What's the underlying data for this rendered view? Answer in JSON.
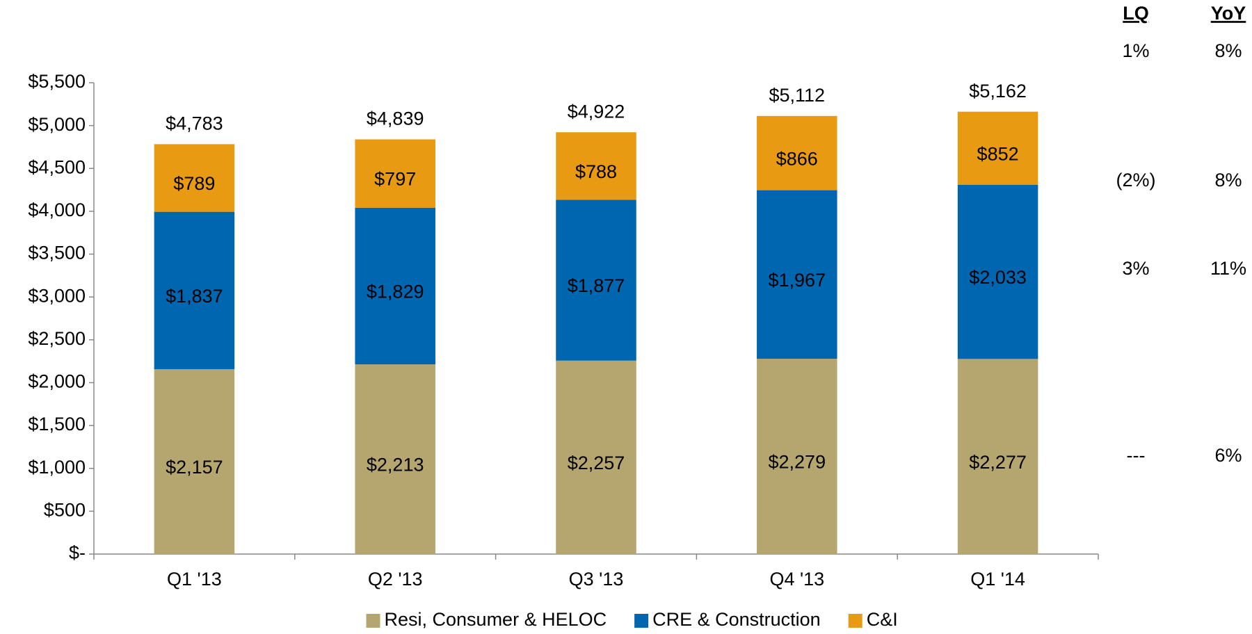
{
  "chart_data": {
    "type": "stacked_bar",
    "categories": [
      "Q1 '13",
      "Q2 '13",
      "Q3 '13",
      "Q4 '13",
      "Q1 '14"
    ],
    "series": [
      {
        "name": "Resi, Consumer & HELOC",
        "color": "#b5a56f",
        "values": [
          2157,
          2213,
          2257,
          2279,
          2277
        ],
        "value_labels": [
          "$2,157",
          "$2,213",
          "$2,257",
          "$2,279",
          "$2,277"
        ]
      },
      {
        "name": "CRE & Construction",
        "color": "#0066b0",
        "values": [
          1837,
          1829,
          1877,
          1967,
          2033
        ],
        "value_labels": [
          "$1,837",
          "$1,829",
          "$1,877",
          "$1,967",
          "$2,033"
        ]
      },
      {
        "name": "C&I",
        "color": "#e89b12",
        "values": [
          789,
          797,
          788,
          866,
          852
        ],
        "value_labels": [
          "$789",
          "$797",
          "$788",
          "$866",
          "$852"
        ]
      }
    ],
    "totals": [
      4783,
      4839,
      4922,
      5112,
      5162
    ],
    "total_labels": [
      "$4,783",
      "$4,839",
      "$4,922",
      "$5,112",
      "$5,162"
    ],
    "ylim": [
      0,
      5500
    ],
    "yticks": [
      {
        "value": 0,
        "label": "$-"
      },
      {
        "value": 500,
        "label": "$500"
      },
      {
        "value": 1000,
        "label": "$1,000"
      },
      {
        "value": 1500,
        "label": "$1,500"
      },
      {
        "value": 2000,
        "label": "$2,000"
      },
      {
        "value": 2500,
        "label": "$2,500"
      },
      {
        "value": 3000,
        "label": "$3,000"
      },
      {
        "value": 3500,
        "label": "$3,500"
      },
      {
        "value": 4000,
        "label": "$4,000"
      },
      {
        "value": 4500,
        "label": "$4,500"
      },
      {
        "value": 5000,
        "label": "$5,000"
      },
      {
        "value": 5500,
        "label": "$5,500"
      }
    ],
    "grid": false,
    "legend": "bottom"
  },
  "side_table": {
    "headers": [
      "LQ",
      "YoY"
    ],
    "rows": [
      [
        "1%",
        "8%"
      ],
      [
        "(2%)",
        "8%"
      ],
      [
        "3%",
        "11%"
      ],
      [
        "---",
        "6%"
      ]
    ]
  }
}
